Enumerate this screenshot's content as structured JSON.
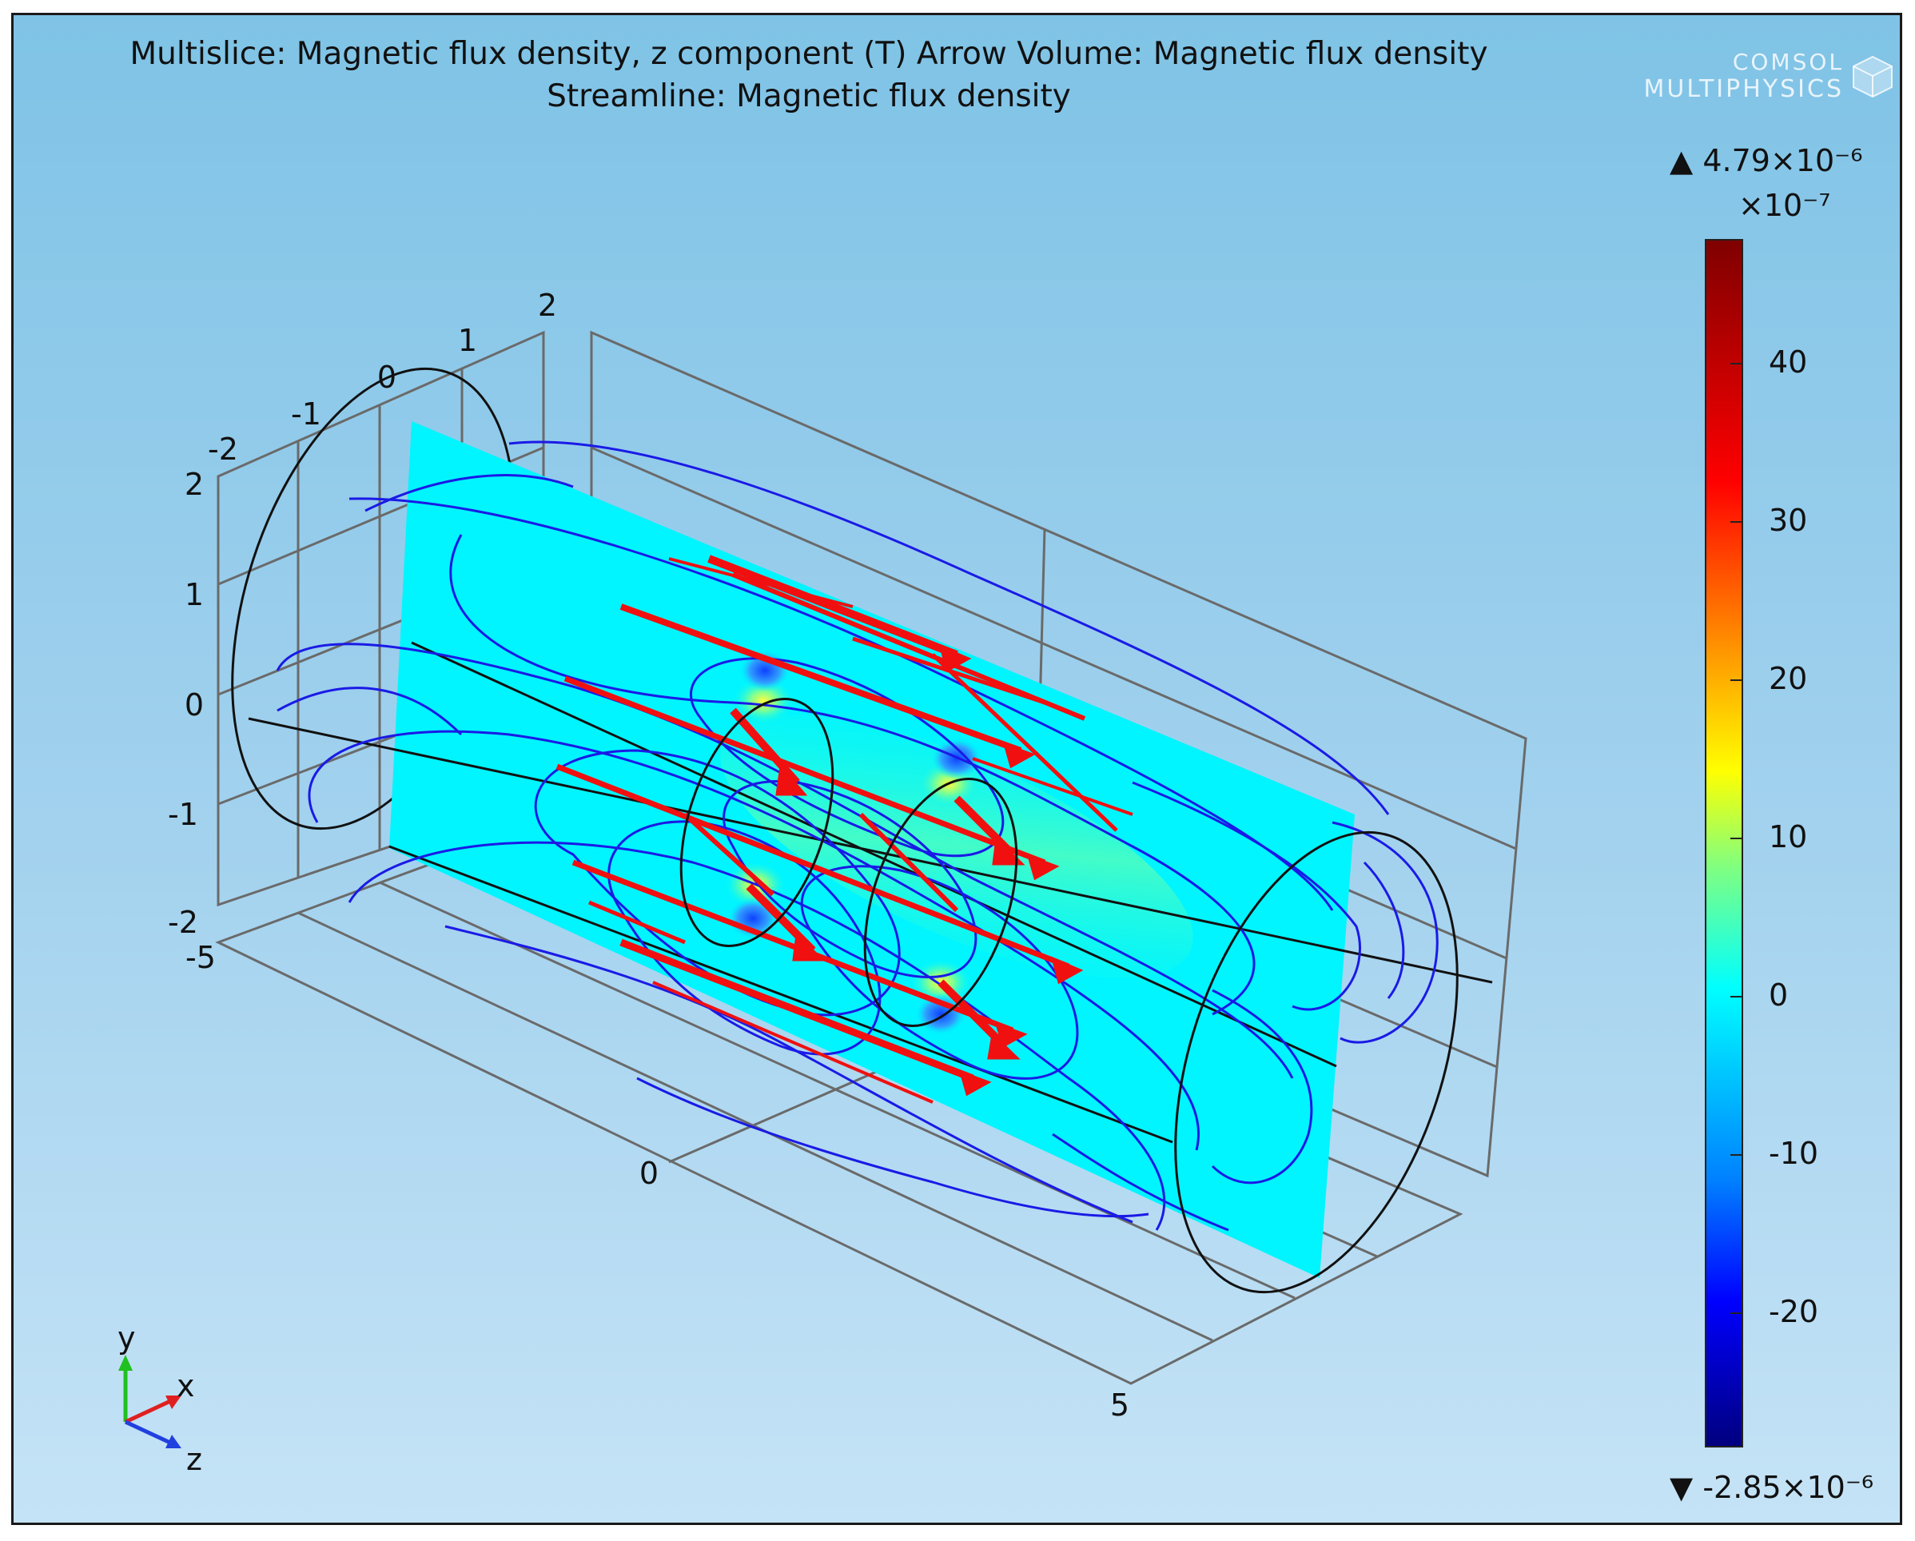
{
  "titles": {
    "line1": "Multislice: Magnetic flux density, z component (T)  Arrow Volume: Magnetic flux density",
    "line2": "Streamline: Magnetic flux density"
  },
  "logo": {
    "line1": "COMSOL",
    "line2": "MULTIPHYSICS"
  },
  "colorbar": {
    "max_label": "4.79×10⁻⁶",
    "multiplier": "×10⁻⁷",
    "min_label": "-2.85×10⁻⁶",
    "max_marker": "▲",
    "min_marker": "▼",
    "ticks": [
      {
        "value": 40,
        "label": "40"
      },
      {
        "value": 30,
        "label": "30"
      },
      {
        "value": 20,
        "label": "20"
      },
      {
        "value": 10,
        "label": "10"
      },
      {
        "value": 0,
        "label": "0"
      },
      {
        "value": -10,
        "label": "-10"
      },
      {
        "value": -20,
        "label": "-20"
      }
    ],
    "range": [
      -28.5,
      47.9
    ],
    "colormap": [
      "#00007f",
      "#0000ff",
      "#0080ff",
      "#00ffff",
      "#80ff80",
      "#ffff00",
      "#ff8000",
      "#ff0000",
      "#7f0000"
    ]
  },
  "axes": {
    "y_ticks": [
      "2",
      "1",
      "0",
      "-1",
      "-2"
    ],
    "x_ticks": [
      "-2",
      "-1",
      "0",
      "1",
      "2"
    ],
    "z_ticks": [
      "-5",
      "0",
      "5"
    ]
  },
  "triad": {
    "x": "x",
    "y": "y",
    "z": "z",
    "x_color": "#e02020",
    "y_color": "#20c020",
    "z_color": "#2040e0"
  },
  "colors": {
    "slice": "#00f5ff",
    "streamline": "#1a1ae6",
    "arrows": "#f01010",
    "cylinder": "#111111",
    "grid": "#6a6a6a"
  }
}
